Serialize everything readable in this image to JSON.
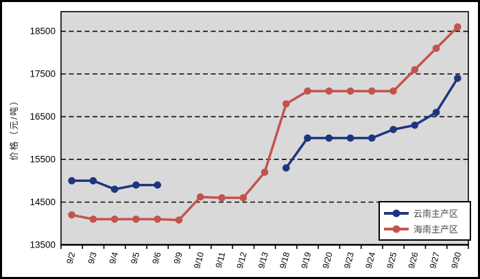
{
  "chart_data": {
    "type": "line",
    "title": "",
    "xlabel": "",
    "ylabel": "价格（元/吨）",
    "categories": [
      "9/2",
      "9/3",
      "9/4",
      "9/5",
      "9/6",
      "9/9",
      "9/10",
      "9/11",
      "9/12",
      "9/13",
      "9/18",
      "9/19",
      "9/20",
      "9/23",
      "9/24",
      "9/25",
      "9/26",
      "9/27",
      "9/30"
    ],
    "series": [
      {
        "name": "云南主产区",
        "color": "#1F3480",
        "values": [
          15000,
          15000,
          14800,
          14900,
          14900,
          null,
          null,
          null,
          null,
          null,
          15300,
          16000,
          16000,
          16000,
          16000,
          16200,
          16300,
          16600,
          17400
        ]
      },
      {
        "name": "海南主产区",
        "color": "#C4534F",
        "values": [
          14200,
          14100,
          14100,
          14100,
          14100,
          14080,
          14620,
          14600,
          14600,
          15200,
          16800,
          17100,
          17100,
          17100,
          17100,
          17100,
          17600,
          18100,
          18600
        ]
      }
    ],
    "ylim": [
      13500,
      18960
    ],
    "yticks": [
      13500,
      14500,
      15500,
      16500,
      17500,
      18500
    ],
    "grid": "horizontal-dashed",
    "legend_position": "bottom-right",
    "plot_background": "#D9D9D9",
    "gridline_color": "#161616"
  }
}
